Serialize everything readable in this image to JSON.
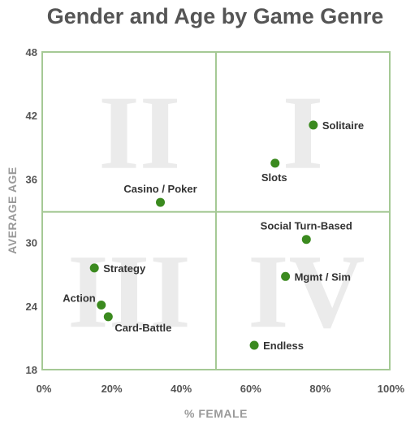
{
  "colors": {
    "point": "#3b8a1f",
    "frame": "#a5c995",
    "quadrant_numeral": "#ebebeb"
  },
  "chart_data": {
    "type": "scatter",
    "title": "Gender and Age by Game Genre",
    "xlabel": "% FEMALE",
    "ylabel": "AVERAGE AGE",
    "xlim": [
      0,
      100
    ],
    "ylim": [
      18,
      48
    ],
    "x_ticks": [
      {
        "value": 0,
        "label": "0%"
      },
      {
        "value": 20,
        "label": "20%"
      },
      {
        "value": 40,
        "label": "40%"
      },
      {
        "value": 60,
        "label": "60%"
      },
      {
        "value": 80,
        "label": "80%"
      },
      {
        "value": 100,
        "label": "100%"
      }
    ],
    "y_ticks": [
      {
        "value": 18,
        "label": "18"
      },
      {
        "value": 24,
        "label": "24"
      },
      {
        "value": 30,
        "label": "30"
      },
      {
        "value": 36,
        "label": "36"
      },
      {
        "value": 42,
        "label": "42"
      },
      {
        "value": 48,
        "label": "48"
      }
    ],
    "divider_x": 50,
    "divider_y": 32.9,
    "grid": false,
    "quadrants": [
      {
        "label": "I",
        "x": 75,
        "y": 40.5
      },
      {
        "label": "II",
        "x": 28,
        "y": 40.5
      },
      {
        "label": "III",
        "x": 25,
        "y": 25.5
      },
      {
        "label": "IV",
        "x": 76,
        "y": 25.5
      }
    ],
    "points": [
      {
        "label": "Solitaire",
        "x": 78,
        "y": 41.1,
        "label_pos": "right"
      },
      {
        "label": "Slots",
        "x": 67,
        "y": 37.5,
        "label_pos": "below"
      },
      {
        "label": "Casino / Poker",
        "x": 34,
        "y": 33.8,
        "label_pos": "above"
      },
      {
        "label": "Social Turn-Based",
        "x": 76,
        "y": 30.3,
        "label_pos": "above"
      },
      {
        "label": "Mgmt / Sim",
        "x": 70,
        "y": 26.8,
        "label_pos": "right"
      },
      {
        "label": "Strategy",
        "x": 15,
        "y": 27.6,
        "label_pos": "right"
      },
      {
        "label": "Action",
        "x": 17,
        "y": 24.1,
        "label_pos": "left"
      },
      {
        "label": "Card-Battle",
        "x": 19,
        "y": 23.0,
        "label_pos": "right"
      },
      {
        "label": "Endless",
        "x": 61,
        "y": 20.3,
        "label_pos": "right"
      }
    ]
  }
}
